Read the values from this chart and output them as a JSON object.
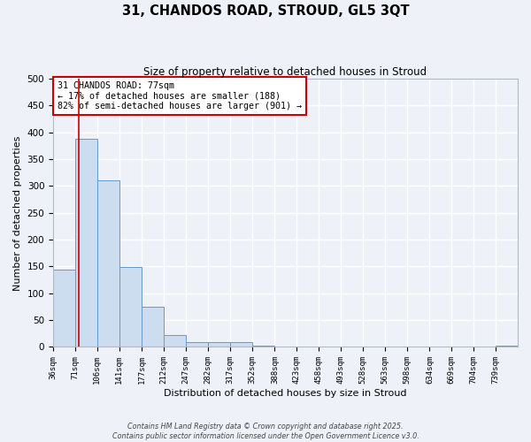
{
  "title": "31, CHANDOS ROAD, STROUD, GL5 3QT",
  "subtitle": "Size of property relative to detached houses in Stroud",
  "xlabel": "Distribution of detached houses by size in Stroud",
  "ylabel": "Number of detached properties",
  "bin_labels": [
    "36sqm",
    "71sqm",
    "106sqm",
    "141sqm",
    "177sqm",
    "212sqm",
    "247sqm",
    "282sqm",
    "317sqm",
    "352sqm",
    "388sqm",
    "423sqm",
    "458sqm",
    "493sqm",
    "528sqm",
    "563sqm",
    "598sqm",
    "634sqm",
    "669sqm",
    "704sqm",
    "739sqm"
  ],
  "bin_edges": [
    36,
    71,
    106,
    141,
    177,
    212,
    247,
    282,
    317,
    352,
    388,
    423,
    458,
    493,
    528,
    563,
    598,
    634,
    669,
    704,
    739,
    774
  ],
  "bar_heights": [
    145,
    388,
    310,
    149,
    75,
    23,
    9,
    9,
    9,
    2,
    0,
    0,
    0,
    0,
    0,
    0,
    0,
    0,
    0,
    0,
    3
  ],
  "bar_color": "#ccddf0",
  "bar_edge_color": "#6699cc",
  "property_line_x": 77,
  "property_line_color": "#cc0000",
  "annotation_text": "31 CHANDOS ROAD: 77sqm\n← 17% of detached houses are smaller (188)\n82% of semi-detached houses are larger (901) →",
  "annotation_box_color": "#ffffff",
  "annotation_box_edge": "#cc0000",
  "ylim": [
    0,
    500
  ],
  "yticks": [
    0,
    50,
    100,
    150,
    200,
    250,
    300,
    350,
    400,
    450,
    500
  ],
  "background_color": "#eef2f8",
  "grid_color": "#ffffff",
  "footer_line1": "Contains HM Land Registry data © Crown copyright and database right 2025.",
  "footer_line2": "Contains public sector information licensed under the Open Government Licence v3.0."
}
